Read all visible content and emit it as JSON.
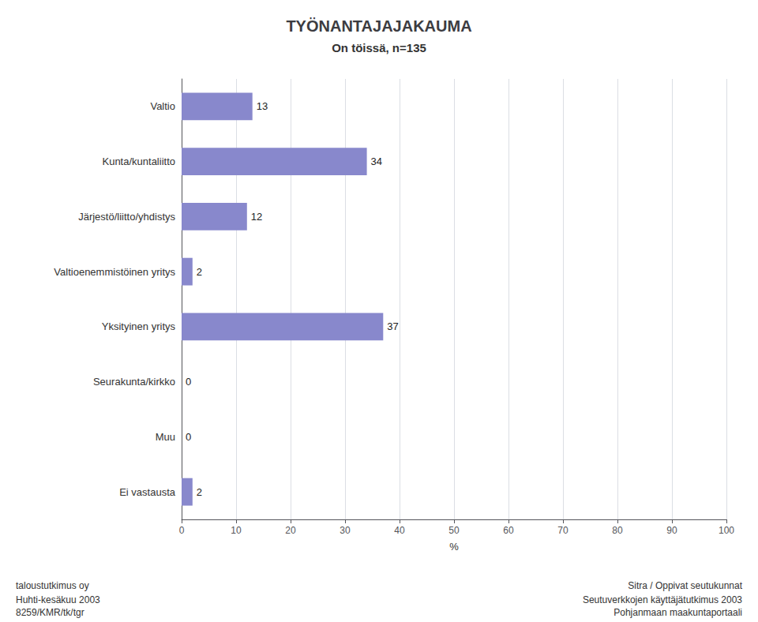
{
  "chart_data": {
    "type": "bar",
    "orientation": "horizontal",
    "title": "TYÖNANTAJAJAKAUMA",
    "subtitle": "On töissä, n=135",
    "categories": [
      "Valtio",
      "Kunta/kuntaliitto",
      "Järjestö/liitto/yhdistys",
      "Valtioenemmistöinen yritys",
      "Yksityinen yritys",
      "Seurakunta/kirkko",
      "Muu",
      "Ei vastausta"
    ],
    "values": [
      13,
      34,
      12,
      2,
      37,
      0,
      0,
      2
    ],
    "color": "#8888cc",
    "xlabel": "%",
    "xlim": [
      0,
      100
    ],
    "xticks": [
      0,
      10,
      20,
      30,
      40,
      50,
      60,
      70,
      80,
      90,
      100
    ],
    "grid": true,
    "data_labels": true,
    "annotations": [
      "taloustutkimus oy",
      "Huhti-kesäkuu 2003",
      "8259/KMR/tk/tgr",
      "Sitra / Oppivat seutukunnat",
      "Seutuverkkojen käyttäjätutkimus 2003",
      "Pohjanmaan maakuntaportaali"
    ]
  }
}
